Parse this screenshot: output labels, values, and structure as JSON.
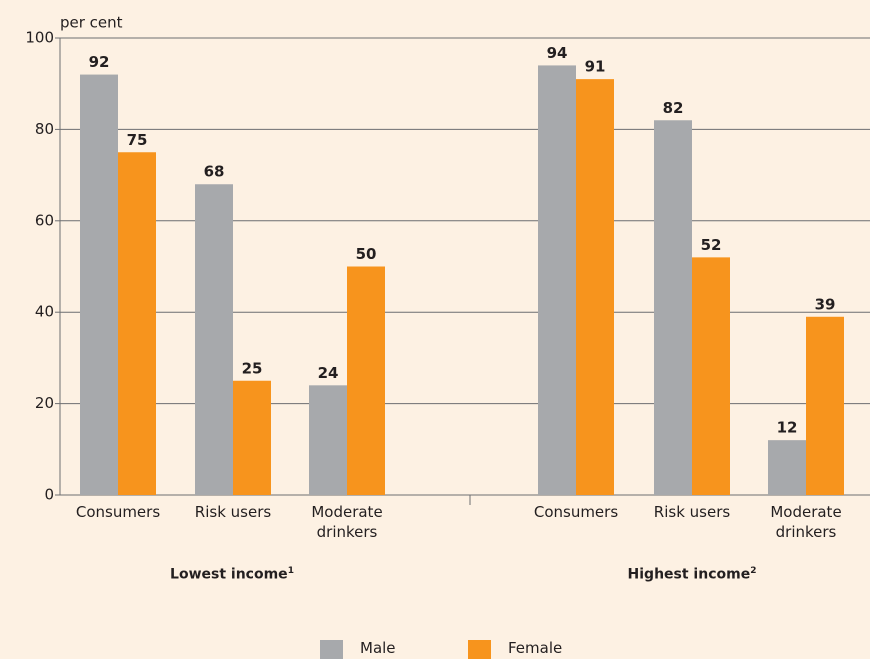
{
  "chart_data": {
    "type": "bar",
    "y_label": "per cent",
    "categories": [
      "Consumers",
      "Risk users",
      "Moderate drinkers",
      "Consumers",
      "Risk users",
      "Moderate drinkers"
    ],
    "groups": [
      {
        "label": "Lowest income",
        "note": "1"
      },
      {
        "label": "Highest income",
        "note": "2"
      }
    ],
    "series": [
      {
        "name": "Male",
        "color": "#a7a9ac",
        "values": [
          92,
          68,
          24,
          94,
          82,
          12
        ]
      },
      {
        "name": "Female",
        "color": "#f7941d",
        "values": [
          75,
          25,
          50,
          91,
          52,
          39
        ]
      }
    ],
    "ylim": [
      0,
      100
    ],
    "yticks": [
      0,
      20,
      40,
      60,
      80,
      100
    ],
    "grid": true
  }
}
